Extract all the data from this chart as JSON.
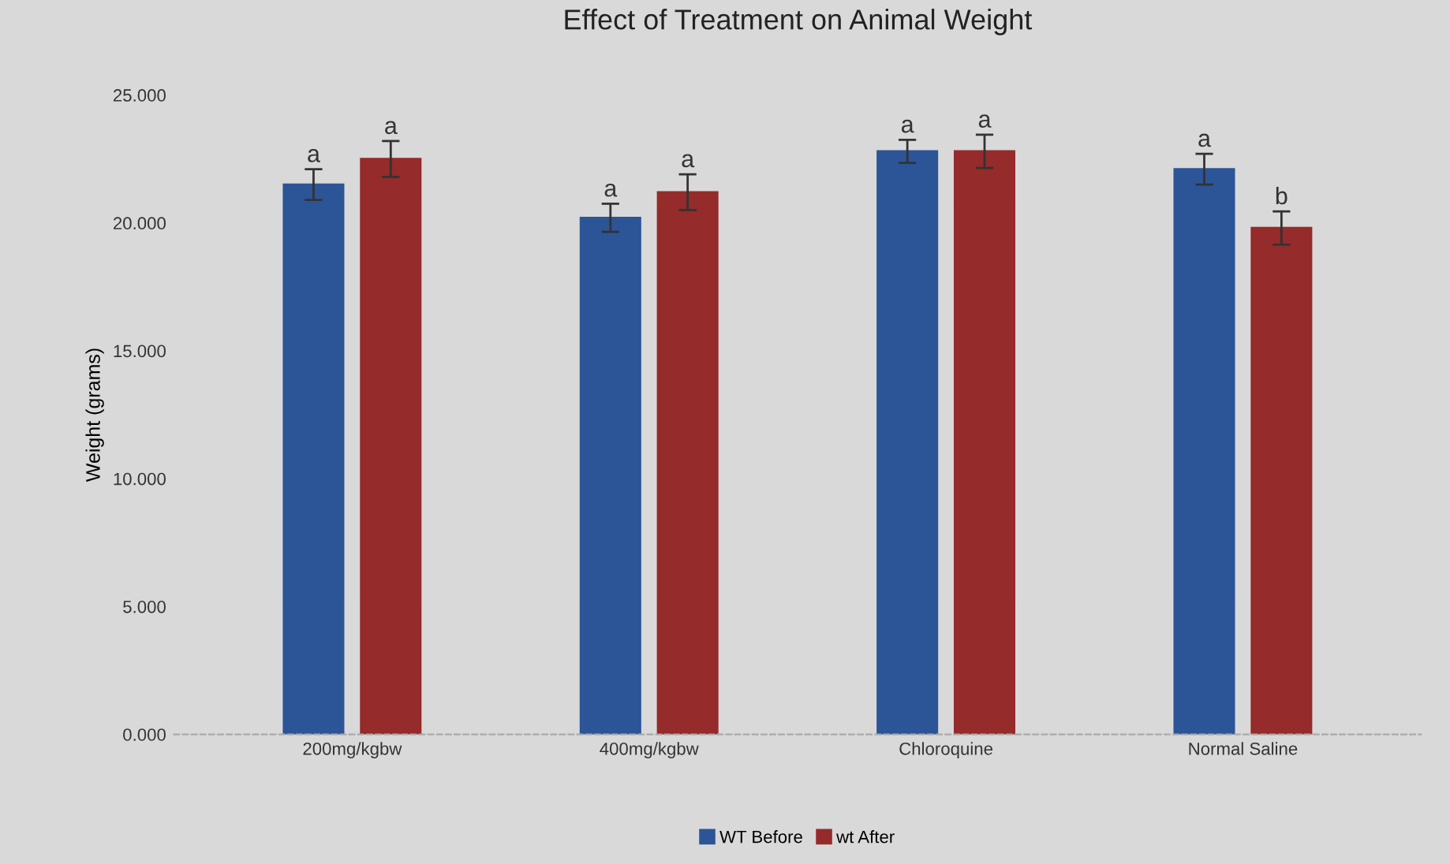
{
  "chart_data": {
    "type": "bar",
    "title": "Effect of Treatment on Animal Weight",
    "ylabel": "Weight (grams)",
    "categories": [
      "200mg/kgbw",
      "400mg/kgbw",
      "Chloroquine",
      "Normal Saline"
    ],
    "series": [
      {
        "name": "WT Before",
        "color": "#2c5597",
        "values": [
          21.5,
          20.2,
          22.8,
          22.1
        ],
        "errors": [
          0.6,
          0.55,
          0.45,
          0.6
        ],
        "value_labels": [
          "a",
          "a",
          "a",
          "a"
        ]
      },
      {
        "name": "wt After",
        "color": "#952b2a",
        "values": [
          22.5,
          21.2,
          22.8,
          19.8
        ],
        "errors": [
          0.7,
          0.7,
          0.65,
          0.65
        ],
        "value_labels": [
          "a",
          "a",
          "a",
          "b"
        ]
      }
    ],
    "ylim": [
      0,
      25
    ],
    "yticks": [
      {
        "value": 0,
        "label": "0.000"
      },
      {
        "value": 5,
        "label": "5.000"
      },
      {
        "value": 10,
        "label": "10.000"
      },
      {
        "value": 15,
        "label": "15.000"
      },
      {
        "value": 20,
        "label": "20.000"
      },
      {
        "value": 25,
        "label": "25.000"
      }
    ],
    "grid": false,
    "legend": "bottom"
  }
}
